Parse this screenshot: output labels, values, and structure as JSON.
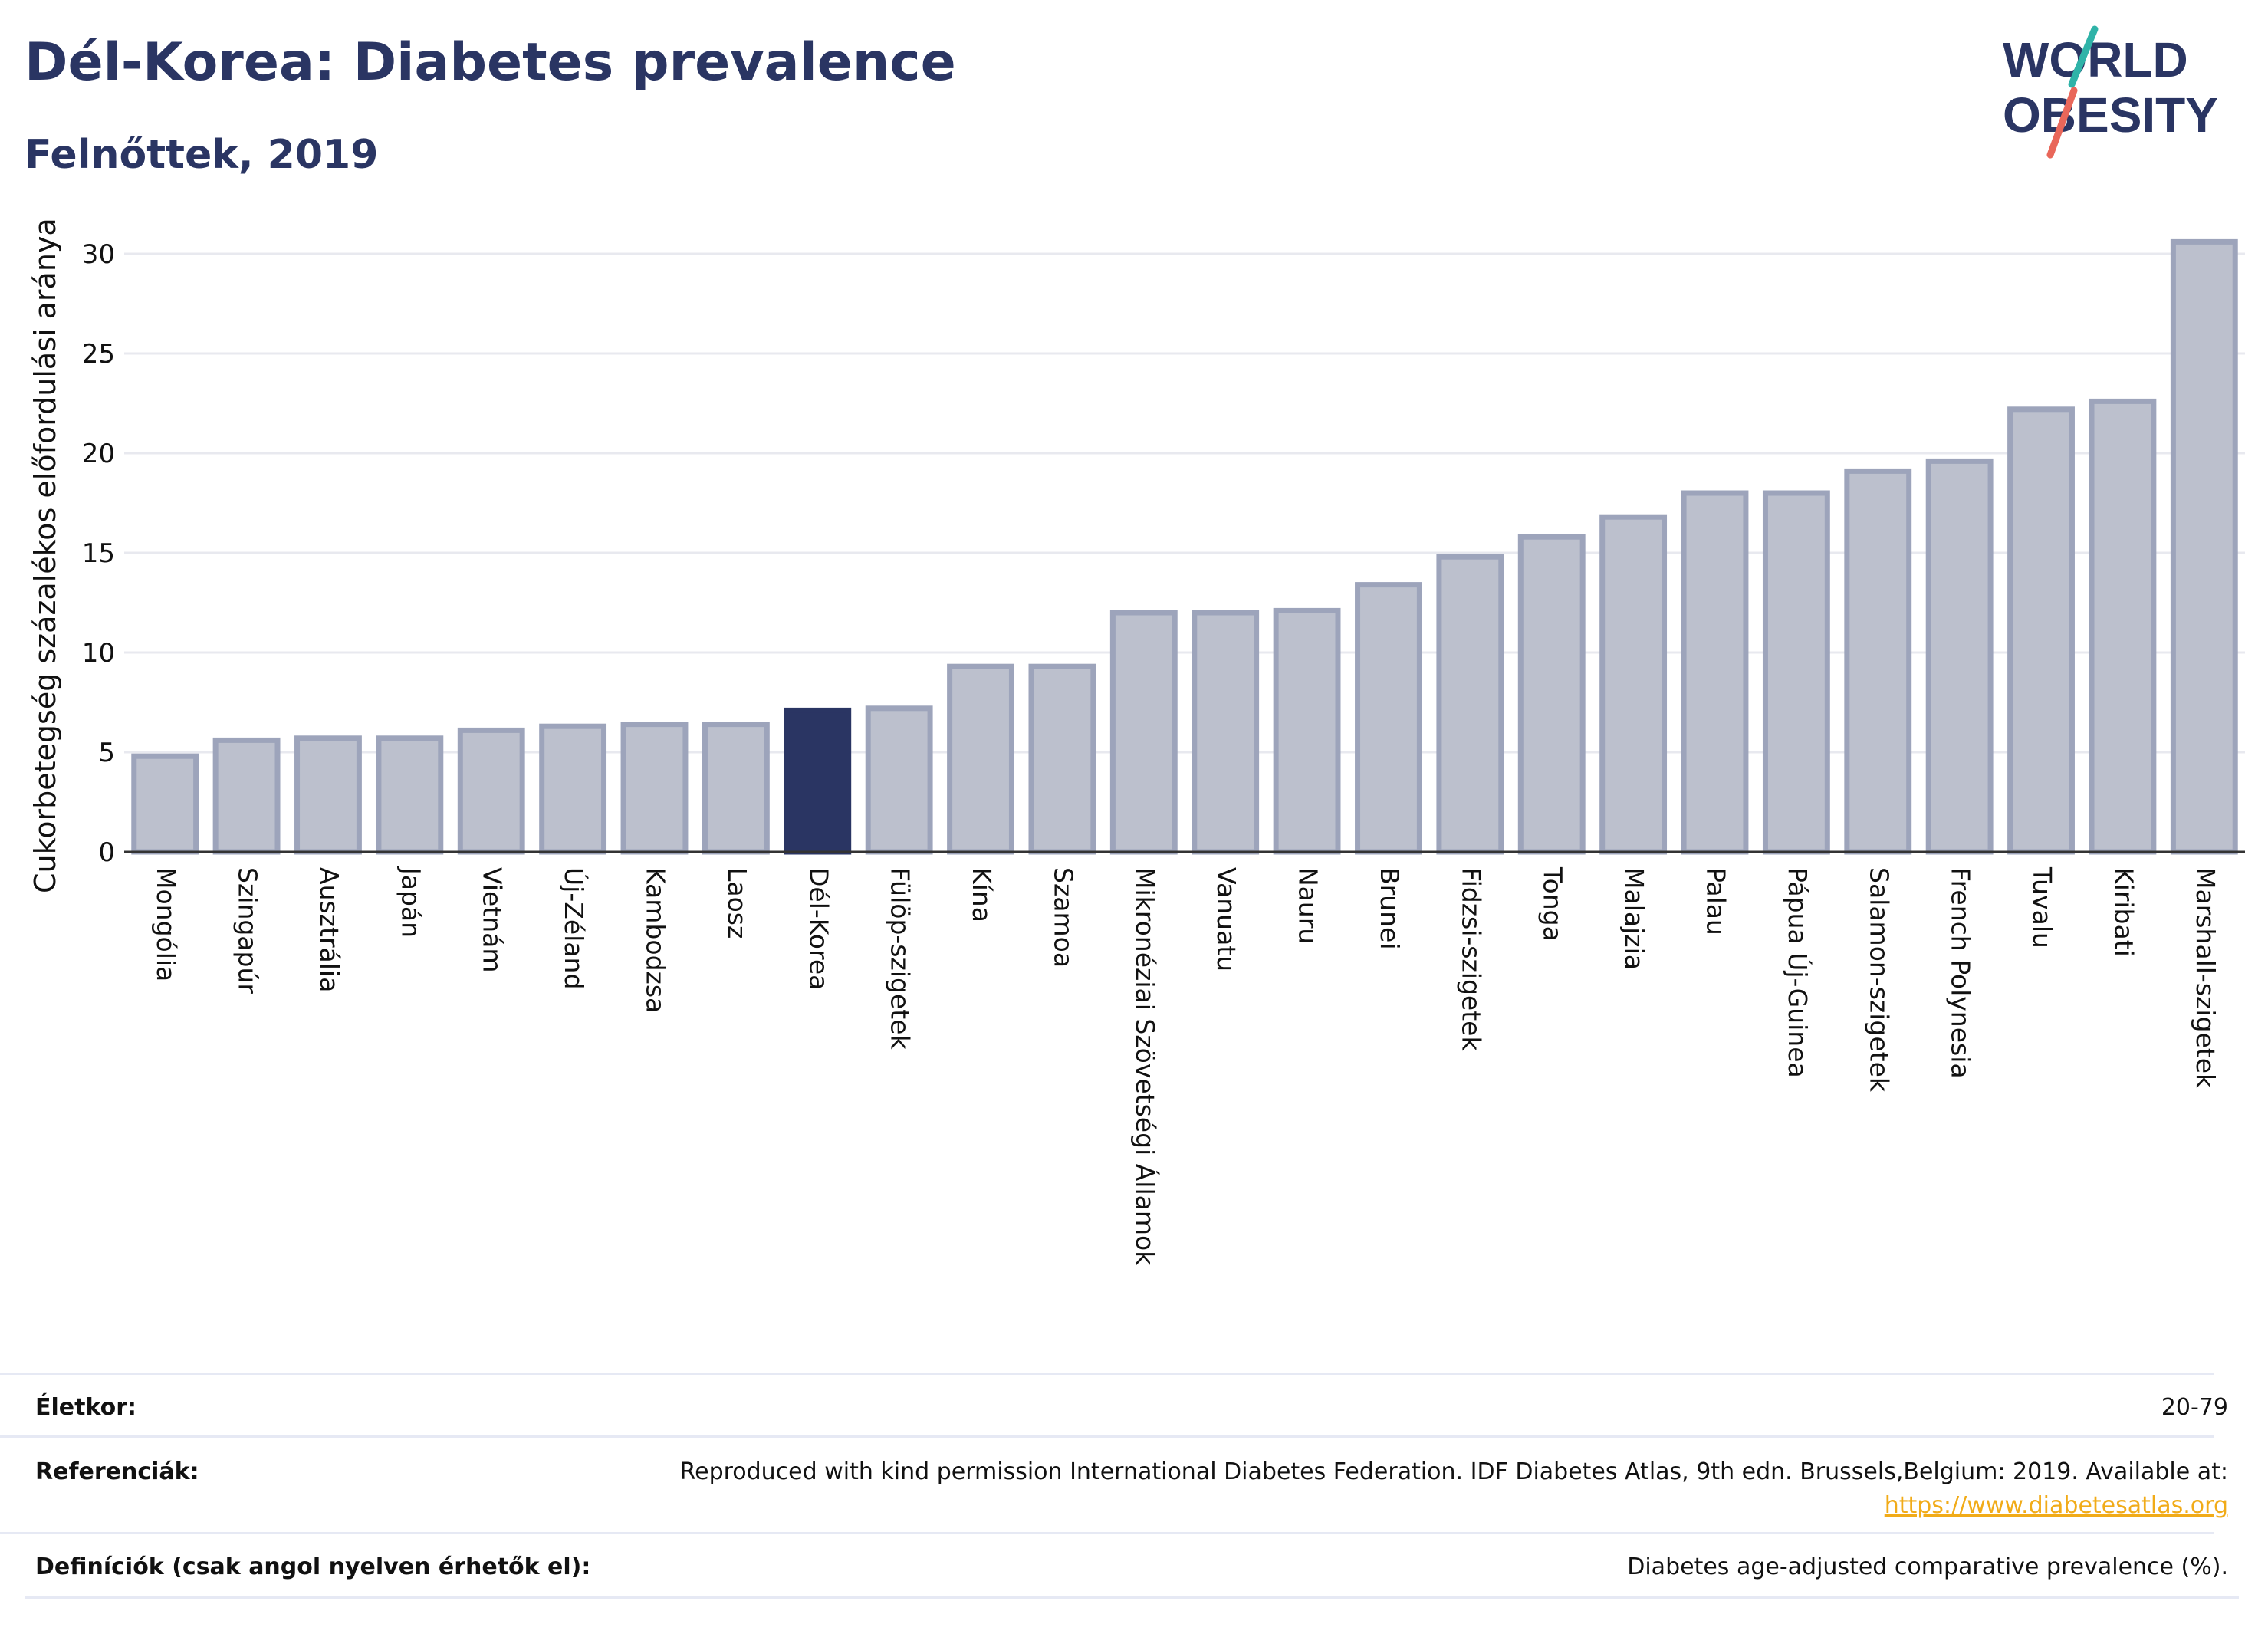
{
  "header": {
    "title": "Dél-Korea: Diabetes prevalence",
    "subtitle": "Felnőttek, 2019"
  },
  "logo": {
    "line1": "WORLD",
    "line2": "OBESITY"
  },
  "colors": {
    "bar_default": "#bcc0cd",
    "bar_default_edge": "#9da4bb",
    "bar_highlight": "#2a3563",
    "text": "#2a3563",
    "grid": "#e8e9ef",
    "link": "#f1ab18",
    "logo_teal": "#2fb3a8",
    "logo_red": "#e9675a"
  },
  "chart_data": {
    "type": "bar",
    "ylabel": "Cukorbetegség százalékos előfordulási aránya",
    "ylim": [
      0,
      32
    ],
    "yticks": [
      0,
      5,
      10,
      15,
      20,
      25,
      30
    ],
    "grid": true,
    "highlight": "Dél-Korea",
    "categories": [
      "Mongólia",
      "Szingapúr",
      "Ausztrália",
      "Japán",
      "Vietnám",
      "Új-Zéland",
      "Kambodzsa",
      "Laosz",
      "Dél-Korea",
      "Fülöp-szigetek",
      "Kína",
      "Szamoa",
      "Mikronéziai Szövetségi Államok",
      "Vanuatu",
      "Nauru",
      "Brunei",
      "Fidzsi-szigetek",
      "Tonga",
      "Malajzia",
      "Palau",
      "Pápua Új-Guinea",
      "Salamon-szigetek",
      "French Polynesia",
      "Tuvalu",
      "Kiribati",
      "Marshall-szigetek"
    ],
    "values": [
      4.8,
      5.6,
      5.7,
      5.7,
      6.1,
      6.3,
      6.4,
      6.4,
      7.1,
      7.2,
      9.3,
      9.3,
      12.0,
      12.0,
      12.1,
      13.4,
      14.8,
      15.8,
      16.8,
      18.0,
      18.0,
      19.1,
      19.6,
      22.2,
      22.6,
      30.6
    ]
  },
  "meta": {
    "age_label": "Életkor:",
    "age_value": "20-79",
    "ref_label": "Referenciák:",
    "ref_text": "Reproduced with kind permission International Diabetes Federation. IDF Diabetes Atlas, 9th edn. Brussels,Belgium: 2019. Available at:",
    "ref_link": "https://www.diabetesatlas.org",
    "def_label": "Definíciók (csak angol nyelven érhetők el):",
    "def_value": "Diabetes age-adjusted comparative prevalence (%)."
  }
}
